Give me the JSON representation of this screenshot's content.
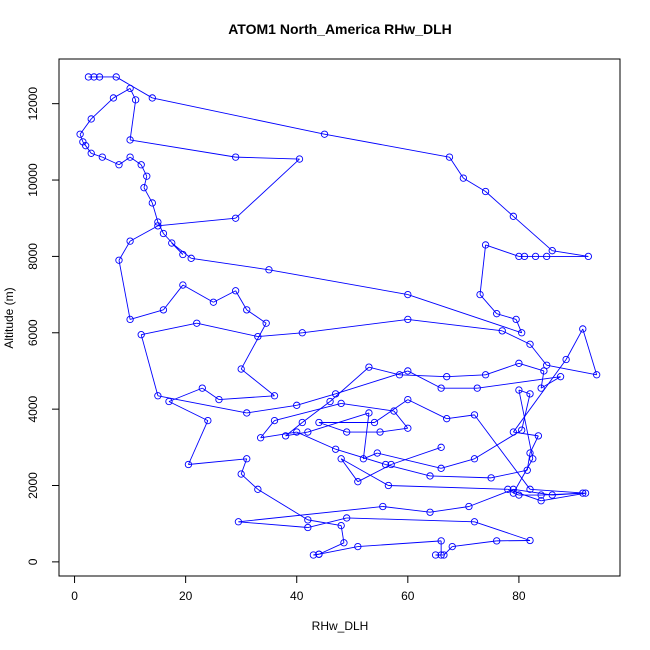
{
  "chart_data": {
    "type": "line",
    "title": "ATOM1 North_America RHw_DLH",
    "xlabel": "RHw_DLH",
    "ylabel": "Altitude (m)",
    "xlim": [
      -2.8,
      98.2
    ],
    "ylim": [
      -370,
      13170
    ],
    "xticks": [
      0,
      20,
      40,
      60,
      80
    ],
    "yticks": [
      0,
      2000,
      4000,
      6000,
      8000,
      10000,
      12000
    ],
    "grid": false,
    "legend": "none",
    "series_color": "#0000ff",
    "marker": "open-circle",
    "series": [
      {
        "points": [
          [
            2.5,
            12700
          ],
          [
            3.5,
            12700
          ],
          [
            4.5,
            12700
          ],
          [
            7.5,
            12700
          ],
          [
            14,
            12150
          ],
          [
            45,
            11200
          ],
          [
            67.5,
            10600
          ],
          [
            70,
            10050
          ],
          [
            74,
            9700
          ],
          [
            79,
            9050
          ],
          [
            86,
            8150
          ],
          [
            92.5,
            8000
          ],
          [
            85,
            8000
          ],
          [
            83,
            8000
          ],
          [
            81,
            8000
          ],
          [
            80,
            8000
          ],
          [
            74,
            8300
          ],
          [
            73,
            7000
          ],
          [
            76,
            6500
          ],
          [
            79.5,
            6350
          ],
          [
            80.5,
            6000
          ],
          [
            60,
            7000
          ],
          [
            35,
            7650
          ],
          [
            21,
            7950
          ],
          [
            17.5,
            8350
          ],
          [
            19.5,
            8050
          ],
          [
            16,
            8600
          ],
          [
            15,
            8900
          ],
          [
            14,
            9400
          ],
          [
            12.5,
            9800
          ],
          [
            13,
            10100
          ],
          [
            12,
            10400
          ],
          [
            10,
            10600
          ],
          [
            8,
            10400
          ],
          [
            5,
            10600
          ],
          [
            3,
            10700
          ],
          [
            2,
            10900
          ],
          [
            1.5,
            11000
          ],
          [
            1,
            11200
          ],
          [
            3,
            11600
          ],
          [
            7,
            12150
          ],
          [
            10,
            12400
          ],
          [
            11,
            12100
          ],
          [
            10,
            11050
          ],
          [
            29,
            10600
          ],
          [
            40.5,
            10550
          ],
          [
            29,
            9000
          ],
          [
            15,
            8800
          ],
          [
            10,
            8400
          ],
          [
            8,
            7900
          ],
          [
            10,
            6350
          ],
          [
            16,
            6600
          ],
          [
            19.5,
            7250
          ],
          [
            25,
            6800
          ],
          [
            29,
            7100
          ],
          [
            31,
            6600
          ],
          [
            34.5,
            6250
          ],
          [
            30,
            5050
          ],
          [
            36,
            4350
          ],
          [
            26,
            4250
          ],
          [
            23,
            4550
          ],
          [
            17,
            4200
          ],
          [
            24,
            3700
          ],
          [
            20.5,
            2550
          ],
          [
            31,
            2700
          ],
          [
            30,
            2300
          ],
          [
            33,
            1900
          ],
          [
            42,
            1100
          ],
          [
            48,
            950
          ],
          [
            48.5,
            500
          ],
          [
            44,
            200
          ],
          [
            43,
            180
          ],
          [
            44,
            200
          ],
          [
            51,
            400
          ],
          [
            66,
            550
          ],
          [
            66,
            180
          ],
          [
            65,
            180
          ],
          [
            66.5,
            180
          ],
          [
            68,
            400
          ],
          [
            76,
            550
          ],
          [
            82,
            560
          ],
          [
            72,
            1050
          ],
          [
            49,
            1150
          ],
          [
            42,
            900
          ],
          [
            29.5,
            1050
          ],
          [
            55.5,
            1450
          ],
          [
            64,
            1300
          ],
          [
            71,
            1450
          ],
          [
            79,
            1900
          ],
          [
            86,
            1750
          ],
          [
            91.5,
            1800
          ],
          [
            84,
            1750
          ],
          [
            80,
            1750
          ],
          [
            79,
            1800
          ],
          [
            82.5,
            2700
          ],
          [
            80,
            4500
          ],
          [
            82,
            4400
          ],
          [
            80.5,
            3450
          ],
          [
            72,
            2700
          ],
          [
            66,
            2450
          ],
          [
            54.5,
            2850
          ],
          [
            52,
            2700
          ],
          [
            53,
            3900
          ],
          [
            42,
            3400
          ],
          [
            38,
            3300
          ],
          [
            41,
            3650
          ],
          [
            46,
            4200
          ],
          [
            53,
            5100
          ],
          [
            58.5,
            4900
          ],
          [
            67,
            4850
          ],
          [
            74,
            4900
          ],
          [
            80,
            5200
          ],
          [
            84.5,
            5000
          ],
          [
            84,
            4550
          ],
          [
            87.5,
            4850
          ],
          [
            72.5,
            4550
          ],
          [
            66,
            4550
          ],
          [
            60,
            5000
          ],
          [
            47,
            4400
          ],
          [
            40,
            4100
          ],
          [
            31,
            3900
          ],
          [
            15,
            4350
          ],
          [
            12,
            5950
          ],
          [
            22,
            6250
          ],
          [
            33,
            5900
          ],
          [
            41,
            6000
          ],
          [
            60,
            6350
          ],
          [
            77,
            6050
          ],
          [
            82,
            5700
          ],
          [
            85,
            5150
          ],
          [
            94,
            4900
          ],
          [
            91.5,
            6100
          ],
          [
            88.5,
            5300
          ],
          [
            79,
            3400
          ],
          [
            83.5,
            3300
          ],
          [
            82,
            2850
          ],
          [
            81.5,
            2400
          ],
          [
            75,
            2200
          ],
          [
            64,
            2250
          ],
          [
            56,
            2550
          ],
          [
            47,
            2950
          ],
          [
            40,
            3400
          ],
          [
            33.5,
            3250
          ],
          [
            36,
            3700
          ],
          [
            48,
            4150
          ],
          [
            57.5,
            3950
          ],
          [
            60,
            3500
          ],
          [
            55,
            3400
          ],
          [
            49,
            3400
          ],
          [
            44,
            3650
          ],
          [
            54,
            3650
          ],
          [
            60,
            4250
          ],
          [
            67,
            3750
          ],
          [
            72,
            3850
          ],
          [
            82,
            1900
          ],
          [
            92,
            1800
          ],
          [
            84,
            1600
          ],
          [
            78,
            1900
          ],
          [
            56.5,
            2000
          ],
          [
            48,
            2700
          ],
          [
            51,
            2100
          ],
          [
            57,
            2550
          ],
          [
            66,
            3000
          ]
        ]
      }
    ]
  }
}
